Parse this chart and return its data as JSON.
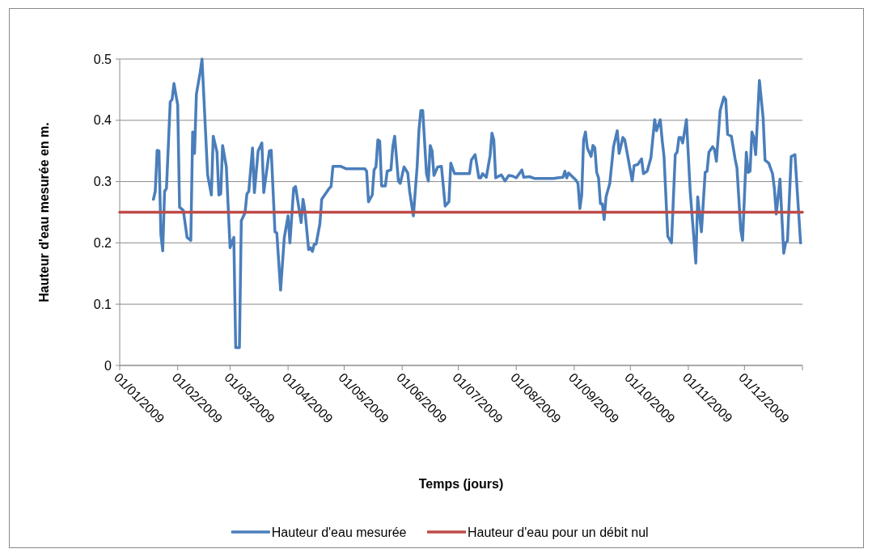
{
  "chart_data": {
    "type": "line",
    "xlabel": "Temps (jours)",
    "ylabel": "Hauteur d'eau mesurée en m.",
    "xlim": [
      "2009-01-01",
      "2010-01-01"
    ],
    "xticks": [
      {
        "value": "2009-01-01",
        "label": "01/01/2009"
      },
      {
        "value": "2009-02-01",
        "label": "01/02/2009"
      },
      {
        "value": "2009-03-01",
        "label": "01/03/2009"
      },
      {
        "value": "2009-04-01",
        "label": "01/04/2009"
      },
      {
        "value": "2009-05-01",
        "label": "01/05/2009"
      },
      {
        "value": "2009-06-01",
        "label": "01/06/2009"
      },
      {
        "value": "2009-07-01",
        "label": "01/07/2009"
      },
      {
        "value": "2009-08-01",
        "label": "01/08/2009"
      },
      {
        "value": "2009-09-01",
        "label": "01/09/2009"
      },
      {
        "value": "2009-10-01",
        "label": "01/10/2009"
      },
      {
        "value": "2009-11-01",
        "label": "01/11/2009"
      },
      {
        "value": "2009-12-01",
        "label": "01/12/2009"
      },
      {
        "value": "2010-01-01",
        "label": null
      }
    ],
    "ylim": [
      0,
      0.5
    ],
    "yticks": [
      0,
      0.1,
      0.2,
      0.3,
      0.4,
      0.5
    ],
    "grid": "y",
    "legend": "bottom",
    "series": [
      {
        "name": "Hauteur d'eau mesurée",
        "color": "#4a7ebb",
        "x": [
          "2009-01-19",
          "2009-01-20",
          "2009-01-21",
          "2009-01-22",
          "2009-01-23",
          "2009-01-24",
          "2009-01-25",
          "2009-01-26",
          "2009-01-28",
          "2009-01-29",
          "2009-01-30",
          "2009-02-01",
          "2009-02-02",
          "2009-02-04",
          "2009-02-06",
          "2009-02-08",
          "2009-02-09",
          "2009-02-10",
          "2009-02-11",
          "2009-02-13",
          "2009-02-14",
          "2009-02-17",
          "2009-02-19",
          "2009-02-20",
          "2009-02-22",
          "2009-02-23",
          "2009-02-24",
          "2009-02-25",
          "2009-02-27",
          "2009-03-01",
          "2009-03-03",
          "2009-03-04",
          "2009-03-06",
          "2009-03-07",
          "2009-03-09",
          "2009-03-10",
          "2009-03-11",
          "2009-03-13",
          "2009-03-14",
          "2009-03-16",
          "2009-03-18",
          "2009-03-19",
          "2009-03-22",
          "2009-03-23",
          "2009-03-25",
          "2009-03-26",
          "2009-03-28",
          "2009-03-30",
          "2009-04-01",
          "2009-04-02",
          "2009-04-04",
          "2009-04-05",
          "2009-04-08",
          "2009-04-09",
          "2009-04-10",
          "2009-04-12",
          "2009-04-13",
          "2009-04-14",
          "2009-04-15",
          "2009-04-16",
          "2009-04-18",
          "2009-04-19",
          "2009-04-21",
          "2009-04-23",
          "2009-04-24",
          "2009-04-25",
          "2009-04-29",
          "2009-05-02",
          "2009-05-12",
          "2009-05-13",
          "2009-05-14",
          "2009-05-16",
          "2009-05-17",
          "2009-05-18",
          "2009-05-19",
          "2009-05-20",
          "2009-05-21",
          "2009-05-23",
          "2009-05-24",
          "2009-05-26",
          "2009-05-27",
          "2009-05-28",
          "2009-05-30",
          "2009-05-31",
          "2009-06-02",
          "2009-06-04",
          "2009-06-05",
          "2009-06-07",
          "2009-06-09",
          "2009-06-10",
          "2009-06-11",
          "2009-06-12",
          "2009-06-14",
          "2009-06-15",
          "2009-06-16",
          "2009-06-17",
          "2009-06-18",
          "2009-06-20",
          "2009-06-22",
          "2009-06-24",
          "2009-06-26",
          "2009-06-27",
          "2009-06-29",
          "2009-07-07",
          "2009-07-08",
          "2009-07-10",
          "2009-07-12",
          "2009-07-13",
          "2009-07-14",
          "2009-07-16",
          "2009-07-18",
          "2009-07-19",
          "2009-07-20",
          "2009-07-21",
          "2009-07-24",
          "2009-07-26",
          "2009-07-28",
          "2009-07-30",
          "2009-08-01",
          "2009-08-04",
          "2009-08-05",
          "2009-08-08",
          "2009-08-11",
          "2009-08-21",
          "2009-08-23",
          "2009-08-26",
          "2009-08-27",
          "2009-08-28",
          "2009-08-29",
          "2009-08-30",
          "2009-09-02",
          "2009-09-03",
          "2009-09-04",
          "2009-09-05",
          "2009-09-06",
          "2009-09-07",
          "2009-09-08",
          "2009-09-10",
          "2009-09-11",
          "2009-09-12",
          "2009-09-13",
          "2009-09-14",
          "2009-09-15",
          "2009-09-16",
          "2009-09-17",
          "2009-09-18",
          "2009-09-20",
          "2009-09-22",
          "2009-09-24",
          "2009-09-25",
          "2009-09-27",
          "2009-09-28",
          "2009-09-30",
          "2009-10-02",
          "2009-10-03",
          "2009-10-05",
          "2009-10-07",
          "2009-10-08",
          "2009-10-10",
          "2009-10-12",
          "2009-10-14",
          "2009-10-15",
          "2009-10-17",
          "2009-10-18",
          "2009-10-19",
          "2009-10-21",
          "2009-10-23",
          "2009-10-25",
          "2009-10-26",
          "2009-10-27",
          "2009-10-28",
          "2009-10-29",
          "2009-10-31",
          "2009-11-02",
          "2009-11-05",
          "2009-11-06",
          "2009-11-08",
          "2009-11-10",
          "2009-11-11",
          "2009-11-12",
          "2009-11-14",
          "2009-11-15",
          "2009-11-16",
          "2009-11-18",
          "2009-11-20",
          "2009-11-21",
          "2009-11-22",
          "2009-11-24",
          "2009-11-26",
          "2009-11-27",
          "2009-11-29",
          "2009-11-30",
          "2009-12-02",
          "2009-12-03",
          "2009-12-04",
          "2009-12-05",
          "2009-12-06",
          "2009-12-07",
          "2009-12-09",
          "2009-12-11",
          "2009-12-12",
          "2009-12-14",
          "2009-12-16",
          "2009-12-17",
          "2009-12-18",
          "2009-12-20",
          "2009-12-22",
          "2009-12-23",
          "2009-12-24",
          "2009-12-26",
          "2009-12-28",
          "2009-12-31"
        ],
        "values": [
          0.271,
          0.284,
          0.351,
          0.35,
          0.214,
          0.187,
          0.284,
          0.289,
          0.43,
          0.434,
          0.46,
          0.425,
          0.258,
          0.253,
          0.209,
          0.204,
          0.381,
          0.346,
          0.443,
          0.478,
          0.5,
          0.311,
          0.278,
          0.374,
          0.348,
          0.278,
          0.28,
          0.359,
          0.324,
          0.192,
          0.209,
          0.029,
          0.029,
          0.236,
          0.249,
          0.28,
          0.284,
          0.355,
          0.282,
          0.35,
          0.363,
          0.282,
          0.35,
          0.351,
          0.218,
          0.216,
          0.123,
          0.209,
          0.244,
          0.2,
          0.289,
          0.292,
          0.233,
          0.271,
          0.253,
          0.189,
          0.192,
          0.186,
          0.198,
          0.198,
          0.231,
          0.271,
          0.28,
          0.289,
          0.292,
          0.325,
          0.325,
          0.321,
          0.321,
          0.317,
          0.267,
          0.278,
          0.319,
          0.324,
          0.368,
          0.366,
          0.293,
          0.293,
          0.317,
          0.319,
          0.357,
          0.374,
          0.301,
          0.297,
          0.324,
          0.314,
          0.284,
          0.244,
          0.324,
          0.385,
          0.416,
          0.416,
          0.313,
          0.301,
          0.359,
          0.35,
          0.31,
          0.324,
          0.325,
          0.26,
          0.267,
          0.33,
          0.313,
          0.313,
          0.335,
          0.344,
          0.306,
          0.306,
          0.313,
          0.307,
          0.342,
          0.379,
          0.368,
          0.306,
          0.311,
          0.301,
          0.31,
          0.309,
          0.306,
          0.319,
          0.307,
          0.308,
          0.305,
          0.305,
          0.306,
          0.307,
          0.317,
          0.306,
          0.314,
          0.311,
          0.302,
          0.297,
          0.256,
          0.278,
          0.368,
          0.381,
          0.355,
          0.341,
          0.359,
          0.355,
          0.315,
          0.306,
          0.264,
          0.264,
          0.238,
          0.275,
          0.297,
          0.357,
          0.383,
          0.346,
          0.372,
          0.368,
          0.335,
          0.301,
          0.326,
          0.328,
          0.337,
          0.313,
          0.317,
          0.339,
          0.401,
          0.383,
          0.401,
          0.368,
          0.341,
          0.211,
          0.2,
          0.344,
          0.348,
          0.372,
          0.372,
          0.363,
          0.401,
          0.284,
          0.167,
          0.275,
          0.218,
          0.315,
          0.317,
          0.348,
          0.357,
          0.352,
          0.333,
          0.416,
          0.438,
          0.434,
          0.377,
          0.374,
          0.337,
          0.322,
          0.222,
          0.204,
          0.348,
          0.315,
          0.317,
          0.381,
          0.372,
          0.344,
          0.465,
          0.403,
          0.335,
          0.33,
          0.313,
          0.289,
          0.247,
          0.304,
          0.183,
          0.2,
          0.203,
          0.341,
          0.344,
          0.2
        ]
      },
      {
        "name": "Hauteur d'eau pour un débit nul",
        "color": "#be4b48",
        "x": [
          "2009-01-01",
          "2010-01-01"
        ],
        "values": [
          0.25,
          0.25
        ]
      }
    ]
  }
}
